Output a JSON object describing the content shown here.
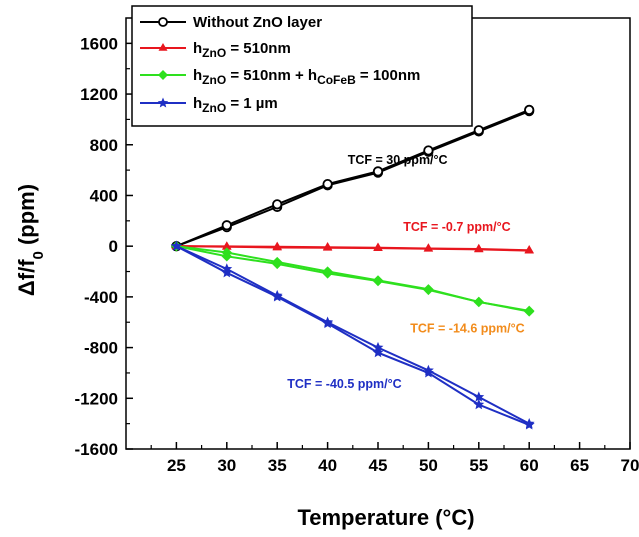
{
  "chart_data": {
    "type": "line",
    "xlabel": "Temperature (°C)",
    "ylabel": {
      "main": "Δf/f",
      "sub": "0",
      "tail": " (ppm)"
    },
    "xlim": [
      20,
      70
    ],
    "ylim": [
      -1600,
      1800
    ],
    "x_ticks": [
      25,
      30,
      35,
      40,
      45,
      50,
      55,
      60,
      65,
      70
    ],
    "y_ticks": [
      -1600,
      -1200,
      -800,
      -400,
      0,
      400,
      800,
      1200,
      1600
    ],
    "grid": false,
    "legend_position": "top-left",
    "series": [
      {
        "name": "Without ZnO layer",
        "legend": [
          {
            "t": "Without ZnO layer"
          }
        ],
        "color": "#000000",
        "marker": "circle",
        "traces": [
          {
            "x": [
              25,
              30,
              35,
              40,
              45,
              50,
              55,
              60
            ],
            "y": [
              0,
              150,
              310,
              480,
              580,
              745,
              905,
              1065
            ]
          },
          {
            "x": [
              25,
              30,
              35,
              40,
              45,
              50,
              55,
              60
            ],
            "y": [
              0,
              165,
              330,
              490,
              590,
              755,
              915,
              1075
            ]
          }
        ]
      },
      {
        "name": "hZnO = 510nm",
        "legend": [
          {
            "t": "h"
          },
          {
            "t": "ZnO",
            "sub": true
          },
          {
            "t": " = 510nm"
          }
        ],
        "color": "#e8161e",
        "marker": "triangle",
        "traces": [
          {
            "x": [
              25,
              30,
              35,
              40,
              45,
              50,
              55,
              60
            ],
            "y": [
              0,
              -5,
              -10,
              -12,
              -15,
              -20,
              -25,
              -35
            ]
          },
          {
            "x": [
              25,
              30,
              35,
              40,
              45,
              50,
              55,
              60
            ],
            "y": [
              0,
              -2,
              -5,
              -8,
              -12,
              -18,
              -22,
              -32
            ]
          }
        ]
      },
      {
        "name": "hZnO = 510nm + hCoFeB = 100nm",
        "legend": [
          {
            "t": "h"
          },
          {
            "t": "ZnO",
            "sub": true
          },
          {
            "t": " = 510nm + h"
          },
          {
            "t": "CoFeB",
            "sub": true
          },
          {
            "t": " = 100nm"
          }
        ],
        "color": "#2ee01e",
        "marker": "diamond",
        "traces": [
          {
            "x": [
              25,
              30,
              35,
              40,
              45,
              50,
              55,
              60
            ],
            "y": [
              0,
              -50,
              -125,
              -200,
              -270,
              -340,
              -440,
              -510
            ]
          },
          {
            "x": [
              25,
              30,
              35,
              40,
              45,
              50,
              55,
              60
            ],
            "y": [
              0,
              -80,
              -140,
              -215,
              -275,
              -345,
              -440,
              -515
            ]
          }
        ]
      },
      {
        "name": "hZnO = 1 µm",
        "legend": [
          {
            "t": "h"
          },
          {
            "t": "ZnO",
            "sub": true
          },
          {
            "t": " = 1 µm"
          }
        ],
        "color": "#1f2fc4",
        "marker": "star",
        "traces": [
          {
            "x": [
              25,
              30,
              35,
              40,
              45,
              50,
              55,
              60
            ],
            "y": [
              0,
              -180,
              -390,
              -600,
              -800,
              -980,
              -1190,
              -1400
            ]
          },
          {
            "x": [
              25,
              30,
              35,
              40,
              45,
              50,
              55,
              60
            ],
            "y": [
              0,
              -210,
              -400,
              -610,
              -840,
              -1000,
              -1250,
              -1410
            ]
          }
        ]
      }
    ],
    "annotations": [
      {
        "text": "TCF = 30 ppm/°C",
        "x": 42.0,
        "y": 650,
        "color": "#000000"
      },
      {
        "text": "TCF = -0.7 ppm/°C",
        "x": 47.5,
        "y": 120,
        "color": "#e8161e"
      },
      {
        "text": "TCF = -14.6 ppm/°C",
        "x": 48.2,
        "y": -680,
        "color": "#f28c1c"
      },
      {
        "text": "TCF = -40.5 ppm/°C",
        "x": 36.0,
        "y": -1120,
        "color": "#1f2fc4"
      }
    ]
  }
}
